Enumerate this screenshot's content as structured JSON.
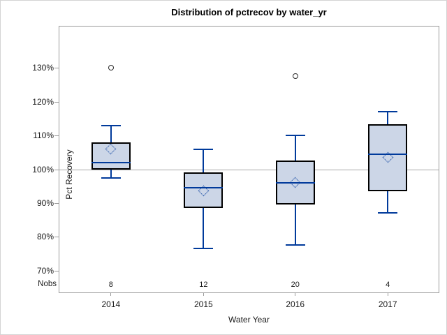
{
  "chart_data": {
    "type": "box",
    "title": "Distribution of pctrecov by water_yr",
    "xlabel": "Water Year",
    "ylabel": "Pct Recovery",
    "nobs_label": "Nobs",
    "categories": [
      "2014",
      "2015",
      "2016",
      "2017"
    ],
    "nobs": [
      "8",
      "12",
      "20",
      "4"
    ],
    "y_tick_values": [
      130,
      120,
      110,
      100,
      90,
      80,
      70
    ],
    "y_tick_labels": [
      "130%",
      "120%",
      "110%",
      "100%",
      "90%",
      "80%",
      "70%"
    ],
    "ylim": [
      63.5,
      142.3
    ],
    "reference_line": 100,
    "grid": "off",
    "legend": "none",
    "boxes": [
      {
        "category": "2014",
        "n": 8,
        "whisker_low": 97.5,
        "q1": 100,
        "median": 102,
        "q3": 108,
        "whisker_high": 113,
        "mean": 106,
        "outliers": [
          130
        ]
      },
      {
        "category": "2015",
        "n": 12,
        "whisker_low": 76.5,
        "q1": 88.5,
        "median": 94.5,
        "q3": 99,
        "whisker_high": 106,
        "mean": 93.5,
        "outliers": []
      },
      {
        "category": "2016",
        "n": 20,
        "whisker_low": 77.5,
        "q1": 89.5,
        "median": 96,
        "q3": 102.5,
        "whisker_high": 110,
        "mean": 96,
        "outliers": [
          127.7
        ]
      },
      {
        "category": "2017",
        "n": 4,
        "whisker_low": 87,
        "q1": 93.5,
        "median": 104.5,
        "q3": 113.3,
        "whisker_high": 117,
        "mean": 103.5,
        "outliers": []
      }
    ],
    "colors": {
      "box_fill": "#ccd6e7",
      "box_border": "#000000",
      "line_blue": "#003a9b",
      "reference_line": "#a8a8a8",
      "axis": "#9b9b9b",
      "outlier_ring": "#2b2b2b",
      "text": "#1a1a1a"
    }
  }
}
